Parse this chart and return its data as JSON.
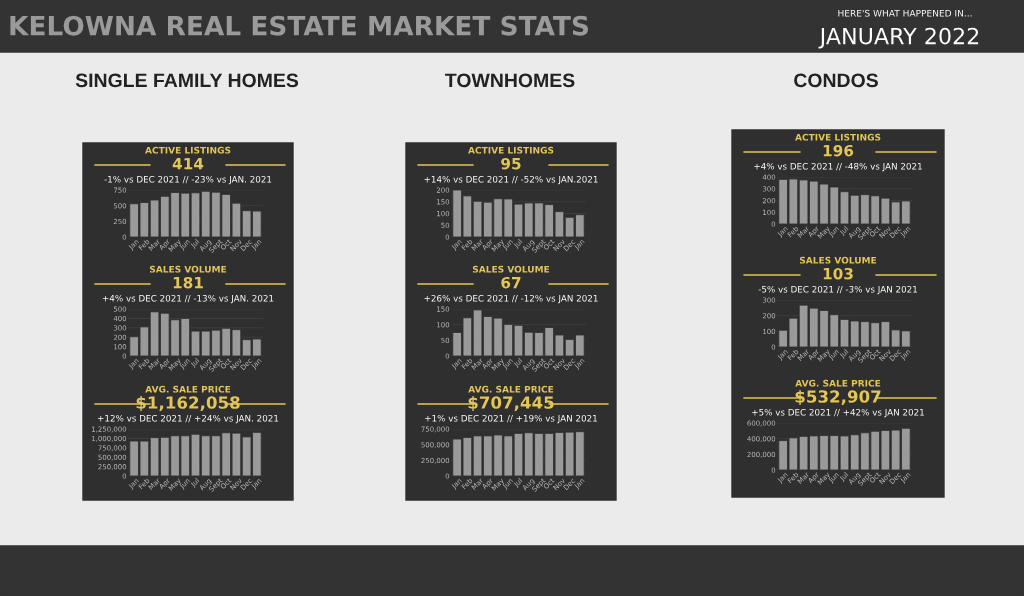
{
  "chart_data": [
    {
      "type": "bar",
      "title": "ACTIVE LISTINGS",
      "subtitle": "414",
      "annotations": [
        "-1% vs DEC 2021 // -23% vs JAN. 2021",
        "SINGLE FAMILY HOMES",
        "KELOWNA REAL ESTATE MARKET STATS",
        "HERE'S WHAT HAPPENED IN...",
        "JANUARY 2022"
      ],
      "categories": [
        "Jan",
        "Feb",
        "Mar",
        "Apr",
        "May",
        "Jun",
        "Jul",
        "Aug",
        "Sept",
        "Oct",
        "Nov",
        "Dec",
        "Jan"
      ],
      "values": [
        530,
        550,
        590,
        650,
        710,
        700,
        705,
        730,
        715,
        680,
        540,
        420,
        414
      ],
      "color": "#9a9a9a",
      "ylim": [
        0,
        750
      ],
      "yticks": [
        0,
        250,
        500,
        750
      ],
      "grid": "y"
    },
    {
      "type": "bar",
      "title": "SALES VOLUME",
      "subtitle": "181",
      "annotations": [
        "+4% vs DEC 2021 // -13% vs JAN. 2021"
      ],
      "categories": [
        "Jan",
        "Feb",
        "Mar",
        "Apr",
        "May",
        "Jun",
        "Jul",
        "Aug",
        "Sept",
        "Oct",
        "Nov",
        "Dec",
        "Jan"
      ],
      "values": [
        205,
        310,
        470,
        455,
        385,
        400,
        265,
        265,
        275,
        295,
        280,
        174,
        181
      ],
      "color": "#9a9a9a",
      "ylim": [
        0,
        500
      ],
      "yticks": [
        0,
        100,
        200,
        300,
        400,
        500
      ],
      "grid": "y"
    },
    {
      "type": "bar",
      "title": "AVG. SALE PRICE",
      "subtitle": "$1,162,058",
      "annotations": [
        "+12% vs DEC 2021 // +24% vs JAN. 2021"
      ],
      "categories": [
        "Jan",
        "Feb",
        "Mar",
        "Apr",
        "May",
        "Jun",
        "Jul",
        "Aug",
        "Sept",
        "Oct",
        "Nov",
        "Dec",
        "Jan"
      ],
      "values": [
        930000,
        930000,
        1020000,
        1030000,
        1070000,
        1070000,
        1110000,
        1070000,
        1070000,
        1150000,
        1140000,
        1040000,
        1160000
      ],
      "color": "#9a9a9a",
      "ylim": [
        0,
        1250000
      ],
      "yticks": [
        {
          "value": 0,
          "label": "0"
        },
        {
          "value": 250000,
          "label": "250,000"
        },
        {
          "value": 500000,
          "label": "500,000"
        },
        {
          "value": 750000,
          "label": "750,000"
        },
        {
          "value": 1000000,
          "label": "1,000,000"
        },
        {
          "value": 1250000,
          "label": "1,250,000"
        }
      ],
      "grid": "y"
    },
    {
      "type": "bar",
      "title": "ACTIVE LISTINGS",
      "subtitle": "95",
      "annotations": [
        "+14% vs DEC 2021 // -52% vs JAN.2021",
        "TOWNHOMES"
      ],
      "categories": [
        "Jan",
        "Feb",
        "Mar",
        "Apr",
        "May",
        "Jun",
        "Jul",
        "Aug",
        "Sept",
        "Oct",
        "Nov",
        "Dec",
        "Jan"
      ],
      "values": [
        200,
        175,
        152,
        148,
        163,
        162,
        140,
        145,
        145,
        138,
        108,
        84,
        95
      ],
      "color": "#9a9a9a",
      "ylim": [
        0,
        200
      ],
      "yticks": [
        0,
        50,
        100,
        150,
        200
      ],
      "grid": "y"
    },
    {
      "type": "bar",
      "title": "SALES VOLUME",
      "subtitle": "67",
      "annotations": [
        "+26% vs DEC 2021 // -12% vs JAN 2021"
      ],
      "categories": [
        "Jan",
        "Feb",
        "Mar",
        "Apr",
        "May",
        "Jun",
        "Jul",
        "Aug",
        "Sept",
        "Oct",
        "Nov",
        "Dec",
        "Jan"
      ],
      "values": [
        75,
        122,
        147,
        126,
        121,
        101,
        98,
        76,
        75,
        91,
        67,
        53,
        67
      ],
      "color": "#9a9a9a",
      "ylim": [
        0,
        150
      ],
      "yticks": [
        0,
        50,
        100,
        150
      ],
      "grid": "y"
    },
    {
      "type": "bar",
      "title": "AVG. SALE PRICE",
      "subtitle": "$707,445",
      "annotations": [
        "+1% vs DEC 2021 // +19% vs JAN 2021"
      ],
      "categories": [
        "Jan",
        "Feb",
        "Mar",
        "Apr",
        "May",
        "Jun",
        "Jul",
        "Aug",
        "Sept",
        "Oct",
        "Nov",
        "Dec",
        "Jan"
      ],
      "values": [
        590000,
        615000,
        640000,
        640000,
        655000,
        640000,
        680000,
        690000,
        680000,
        680000,
        695000,
        700000,
        707000
      ],
      "color": "#9a9a9a",
      "ylim": [
        0,
        750000
      ],
      "yticks": [
        {
          "value": 0,
          "label": "0"
        },
        {
          "value": 250000,
          "label": "250,000"
        },
        {
          "value": 500000,
          "label": "500,000"
        },
        {
          "value": 750000,
          "label": "750,000"
        }
      ],
      "grid": "y"
    },
    {
      "type": "bar",
      "title": "ACTIVE LISTINGS",
      "subtitle": "196",
      "annotations": [
        "+4% vs DEC 2021 // -48% vs JAN 2021",
        "CONDOS"
      ],
      "categories": [
        "Jan",
        "Feb",
        "Mar",
        "Apr",
        "May",
        "Jun",
        "Jul",
        "Aug",
        "Sept",
        "Oct",
        "Nov",
        "Dec",
        "Jan"
      ],
      "values": [
        380,
        383,
        375,
        365,
        340,
        315,
        275,
        245,
        250,
        240,
        220,
        188,
        196
      ],
      "color": "#9a9a9a",
      "ylim": [
        0,
        400
      ],
      "yticks": [
        0,
        100,
        200,
        300,
        400
      ],
      "grid": "y"
    },
    {
      "type": "bar",
      "title": "SALES VOLUME",
      "subtitle": "103",
      "annotations": [
        "-5% vs DEC 2021 // -3% vs JAN 2021"
      ],
      "categories": [
        "Jan",
        "Feb",
        "Mar",
        "Apr",
        "May",
        "Jun",
        "Jul",
        "Aug",
        "Sept",
        "Oct",
        "Nov",
        "Dec",
        "Jan"
      ],
      "values": [
        107,
        184,
        267,
        248,
        233,
        206,
        176,
        166,
        162,
        155,
        162,
        109,
        103
      ],
      "color": "#9a9a9a",
      "ylim": [
        0,
        300
      ],
      "yticks": [
        0,
        100,
        200,
        300
      ],
      "grid": "y"
    },
    {
      "type": "bar",
      "title": "AVG. SALE PRICE",
      "subtitle": "$532,907",
      "annotations": [
        "+5% vs DEC 2021 // +42% vs JAN 2021"
      ],
      "categories": [
        "Jan",
        "Feb",
        "Mar",
        "Apr",
        "May",
        "Jun",
        "Jul",
        "Aug",
        "Sept",
        "Oct",
        "Nov",
        "Dec",
        "Jan"
      ],
      "values": [
        375000,
        410000,
        430000,
        435000,
        440000,
        440000,
        435000,
        450000,
        475000,
        495000,
        505000,
        510000,
        533000
      ],
      "color": "#9a9a9a",
      "ylim": [
        0,
        600000
      ],
      "yticks": [
        {
          "value": 0,
          "label": "0"
        },
        {
          "value": 200000,
          "label": "200,000"
        },
        {
          "value": 400000,
          "label": "400,000"
        },
        {
          "value": 600000,
          "label": "600,000"
        }
      ],
      "grid": "y"
    }
  ]
}
